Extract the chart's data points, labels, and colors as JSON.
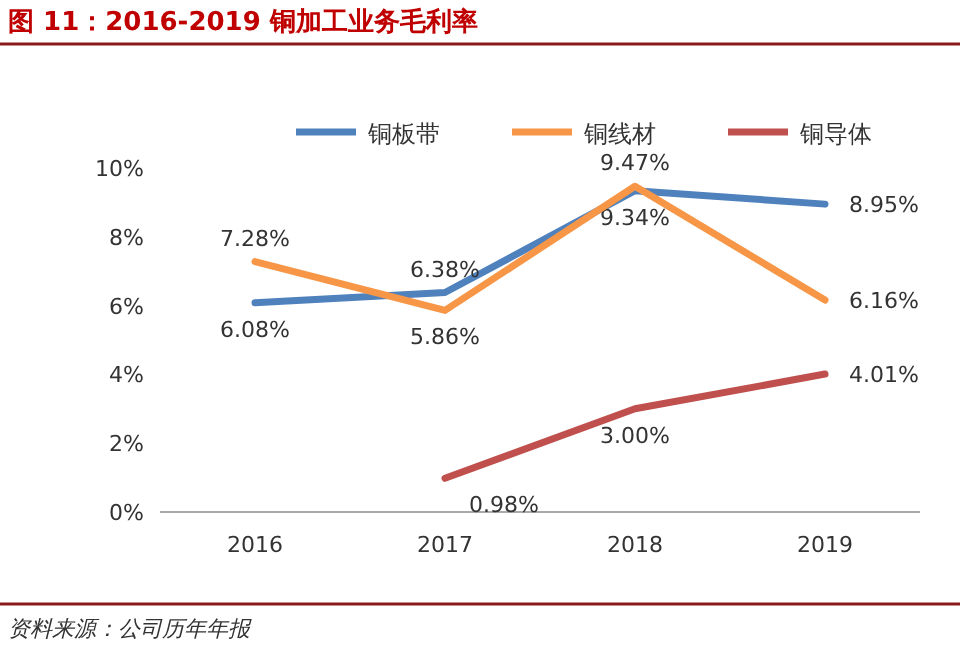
{
  "chart_data": {
    "type": "line",
    "title": "图 11：2016-2019 铜加工业务毛利率",
    "categories": [
      "2016",
      "2017",
      "2018",
      "2019"
    ],
    "series": [
      {
        "name": "铜板带",
        "color": "#4f81bd",
        "values": [
          6.08,
          6.38,
          9.34,
          8.95
        ],
        "value_labels": [
          "6.08%",
          "6.38%",
          "9.34%",
          "8.95%"
        ]
      },
      {
        "name": "铜线材",
        "color": "#f79646",
        "values": [
          7.28,
          5.86,
          9.47,
          6.16
        ],
        "value_labels": [
          "7.28%",
          "5.86%",
          "9.47%",
          "6.16%"
        ]
      },
      {
        "name": "铜导体",
        "color": "#c0504d",
        "values": [
          null,
          0.98,
          3.0,
          4.01
        ],
        "value_labels": [
          null,
          "0.98%",
          "3.00%",
          "4.01%"
        ]
      }
    ],
    "ylim": [
      0,
      10
    ],
    "yticks": [
      {
        "value": 0,
        "label": "0%"
      },
      {
        "value": 2,
        "label": "2%"
      },
      {
        "value": 4,
        "label": "4%"
      },
      {
        "value": 6,
        "label": "6%"
      },
      {
        "value": 8,
        "label": "8%"
      },
      {
        "value": 10,
        "label": "10%"
      }
    ],
    "legend": "top",
    "grid": false,
    "marker": "none",
    "annotations": [
      "资料来源：公司历年年报"
    ]
  }
}
